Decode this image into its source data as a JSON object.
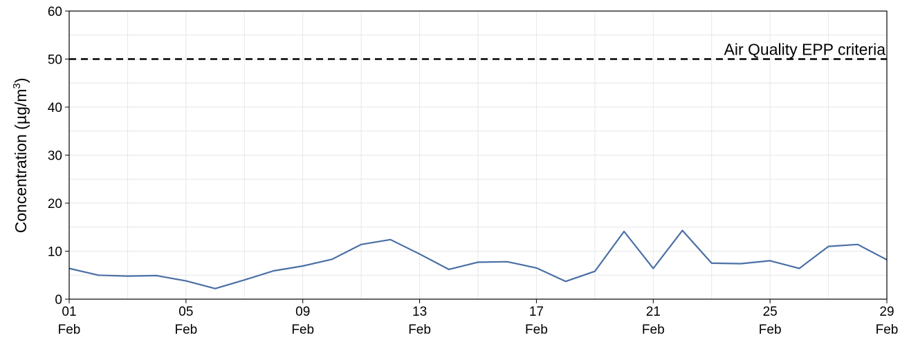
{
  "chart_data": {
    "type": "line",
    "ylabel": "Concentration (µg/m",
    "ylabel_superscript": "3",
    "ylabel_close": ")",
    "ylim": [
      0,
      60
    ],
    "y_ticks": [
      0,
      10,
      20,
      30,
      40,
      50,
      60
    ],
    "xlim": [
      "2020-02-01",
      "2020-02-29"
    ],
    "x_ticks": [
      {
        "date": "2020-02-01",
        "day": "01",
        "month": "Feb"
      },
      {
        "date": "2020-02-05",
        "day": "05",
        "month": "Feb"
      },
      {
        "date": "2020-02-09",
        "day": "09",
        "month": "Feb"
      },
      {
        "date": "2020-02-13",
        "day": "13",
        "month": "Feb"
      },
      {
        "date": "2020-02-17",
        "day": "17",
        "month": "Feb"
      },
      {
        "date": "2020-02-21",
        "day": "21",
        "month": "Feb"
      },
      {
        "date": "2020-02-25",
        "day": "25",
        "month": "Feb"
      },
      {
        "date": "2020-02-29",
        "day": "29",
        "month": "Feb"
      }
    ],
    "grid": true,
    "series": [
      {
        "color": "#4a6fa5",
        "x": [
          "2020-02-01",
          "2020-02-02",
          "2020-02-03",
          "2020-02-04",
          "2020-02-05",
          "2020-02-06",
          "2020-02-07",
          "2020-02-08",
          "2020-02-09",
          "2020-02-10",
          "2020-02-11",
          "2020-02-12",
          "2020-02-13",
          "2020-02-14",
          "2020-02-15",
          "2020-02-16",
          "2020-02-17",
          "2020-02-18",
          "2020-02-19",
          "2020-02-20",
          "2020-02-21",
          "2020-02-22",
          "2020-02-23",
          "2020-02-24",
          "2020-02-25",
          "2020-02-26",
          "2020-02-27",
          "2020-02-28",
          "2020-02-29"
        ],
        "y": [
          6.4,
          5.0,
          4.8,
          4.9,
          3.8,
          2.2,
          4.0,
          5.9,
          6.9,
          8.3,
          11.4,
          12.4,
          9.4,
          6.2,
          7.7,
          7.8,
          6.5,
          3.7,
          5.8,
          14.1,
          6.4,
          14.3,
          7.5,
          7.4,
          8.0,
          6.4,
          11.0,
          11.4,
          8.2
        ]
      }
    ],
    "reference_lines": [
      {
        "y": 50,
        "label": "Air Quality EPP criteria",
        "style": "dashed",
        "color": "#000000"
      }
    ]
  }
}
